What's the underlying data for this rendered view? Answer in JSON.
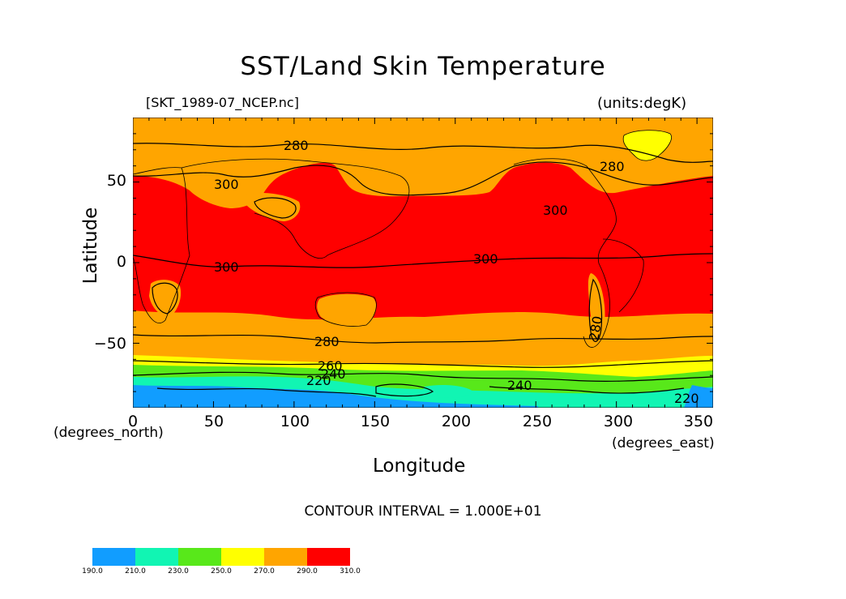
{
  "title": "SST/Land Skin Temperature",
  "file_label": "[SKT_1989-07_NCEP.nc]",
  "units_label": "(units:degK)",
  "xlabel": "Longitude",
  "ylabel": "Latitude",
  "x_units": "(degrees_east)",
  "y_units": "(degrees_north)",
  "contour_interval": "CONTOUR INTERVAL = 1.000E+01",
  "xticks": [
    "0",
    "50",
    "100",
    "150",
    "200",
    "250",
    "300",
    "350"
  ],
  "yticks": [
    "50",
    "0",
    "−50"
  ],
  "colorbar": {
    "levels": [
      "190.0",
      "210.0",
      "230.0",
      "250.0",
      "270.0",
      "290.0",
      "310.0"
    ],
    "colors": [
      "#119dff",
      "#11f5b3",
      "#58e81a",
      "#ffff00",
      "#ffa500",
      "#ff0000"
    ]
  },
  "chart_data": {
    "type": "heatmap",
    "title": "SST/Land Skin Temperature",
    "xlabel": "Longitude",
    "ylabel": "Latitude",
    "xlim": [
      0,
      360
    ],
    "ylim": [
      -90,
      90
    ],
    "units": "degK",
    "contour_labels": [
      "280",
      "280",
      "300",
      "300",
      "300",
      "300",
      "280",
      "280",
      "260",
      "240",
      "220",
      "240",
      "220"
    ]
  }
}
